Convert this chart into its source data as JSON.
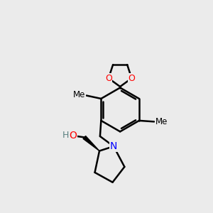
{
  "background_color": "#ebebeb",
  "bond_color": "#000000",
  "bond_width": 1.8,
  "atom_colors": {
    "O": "#ff0000",
    "N": "#0000ff",
    "C": "#000000",
    "H": "#5a8080"
  },
  "font_size": 10,
  "figsize": [
    3.0,
    3.0
  ],
  "dpi": 100
}
